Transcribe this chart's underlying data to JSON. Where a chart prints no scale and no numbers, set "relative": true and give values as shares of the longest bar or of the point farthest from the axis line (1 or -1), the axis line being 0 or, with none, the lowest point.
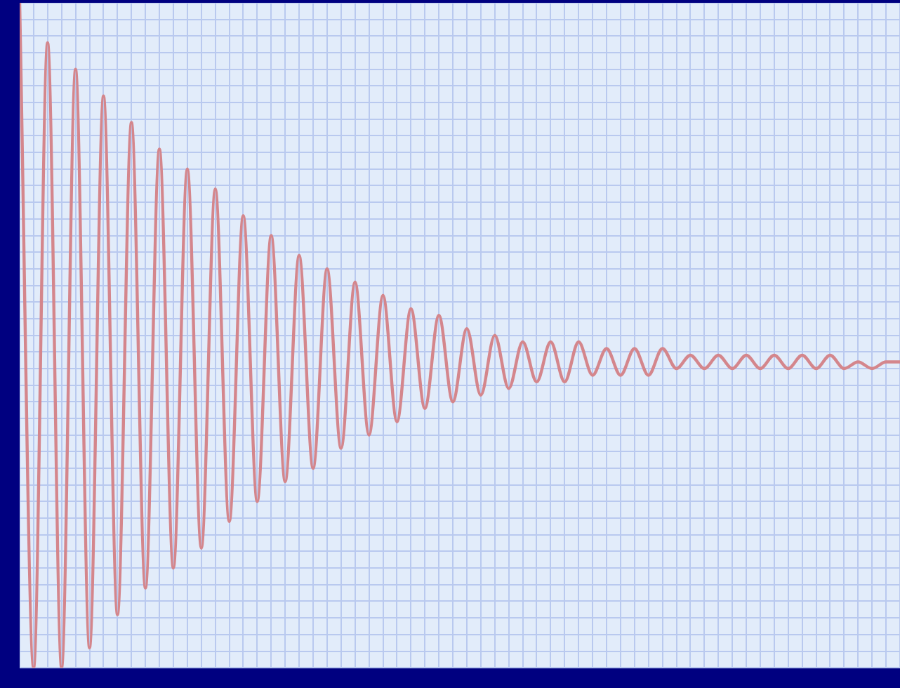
{
  "chart_data": {
    "type": "line",
    "relative": true,
    "grid": true,
    "marker": "none",
    "line_style": "solid",
    "legend": false,
    "categories": [
      null,
      null,
      null,
      null,
      null,
      null,
      null,
      null,
      null,
      null,
      null,
      null,
      null,
      null,
      null,
      null,
      null,
      null,
      null,
      null,
      null,
      null,
      null,
      null,
      null,
      null,
      null,
      null,
      null,
      null,
      null,
      null,
      null,
      null,
      null,
      null,
      null,
      null,
      null,
      null,
      null,
      null,
      null,
      null,
      null,
      null,
      null,
      null,
      null,
      null,
      null,
      null,
      null,
      null,
      null,
      null,
      null,
      null,
      null,
      null,
      null,
      null,
      null,
      null
    ],
    "series": [
      {
        "color": "#d4868c",
        "values": [
          1.0,
          0,
          0.94,
          0,
          0.9,
          0.03,
          0.86,
          0.08,
          0.82,
          0.12,
          0.78,
          0.15,
          0.75,
          0.18,
          0.72,
          0.22,
          0.68,
          0.25,
          0.65,
          0.28,
          0.62,
          0.3,
          0.6,
          0.33,
          0.58,
          0.35,
          0.56,
          0.37,
          0.54,
          0.39,
          0.53,
          0.4,
          0.51,
          0.41,
          0.5,
          0.42,
          0.49,
          0.43,
          0.49,
          0.43,
          0.49,
          0.44,
          0.48,
          0.44,
          0.48,
          0.44,
          0.48,
          0.45,
          0.47,
          0.45,
          0.47,
          0.45,
          0.47,
          0.45,
          0.47,
          0.45,
          0.47,
          0.45,
          0.47,
          0.45,
          0.46,
          0.45,
          0.46,
          0.46
        ]
      }
    ]
  }
}
